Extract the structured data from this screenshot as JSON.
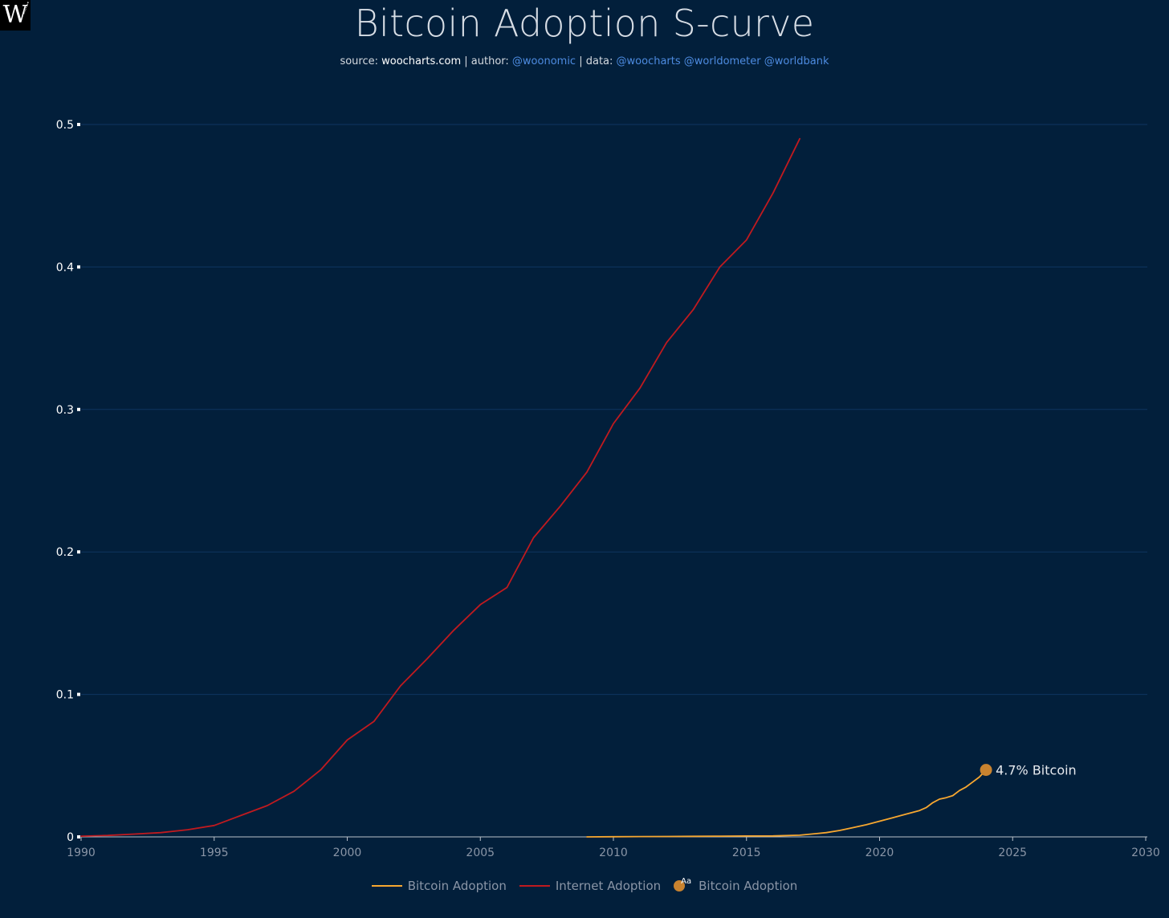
{
  "logo": {
    "letter": "W"
  },
  "header": {
    "title": "Bitcoin Adoption S-curve",
    "source_label": "source: ",
    "source_value": "woocharts.com",
    "sep1": " | author: ",
    "author": "@woonomic",
    "sep2": " | data: ",
    "data_sources": "@woocharts @worldometer @worldbank"
  },
  "colors": {
    "background": "#021f3b",
    "grid": "#0e3560",
    "bitcoin": "#f7a730",
    "internet": "#c01a1f",
    "marker": "#c9832f",
    "axis_text": "#ffffff",
    "xtick_text": "#8a95a6"
  },
  "chart_data": {
    "type": "line",
    "title": "Bitcoin Adoption S-curve",
    "xlim": [
      1990,
      2030
    ],
    "ylim": [
      0,
      0.5
    ],
    "x_ticks": [
      1990,
      1995,
      2000,
      2005,
      2010,
      2015,
      2020,
      2025,
      2030
    ],
    "y_ticks": [
      0,
      0.1,
      0.2,
      0.3,
      0.4,
      0.5
    ],
    "y_tick_labels": [
      "0",
      "0.1",
      "0.2",
      "0.3",
      "0.4",
      "0.5"
    ],
    "grid": true,
    "legend_position": "bottom-center",
    "series": [
      {
        "name": "Bitcoin Adoption",
        "color": "#f7a730",
        "x": [
          2009,
          2010,
          2011,
          2012,
          2013,
          2014,
          2015,
          2016,
          2017,
          2018,
          2018.5,
          2019,
          2019.5,
          2020,
          2020.5,
          2021,
          2021.5,
          2021.75,
          2022,
          2022.25,
          2022.5,
          2022.75,
          2023,
          2023.25,
          2023.5,
          2023.75,
          2024
        ],
        "y": [
          0,
          0.0001,
          0.0002,
          0.0003,
          0.0004,
          0.0005,
          0.0006,
          0.0007,
          0.0012,
          0.003,
          0.0045,
          0.0065,
          0.0085,
          0.011,
          0.0135,
          0.016,
          0.0185,
          0.0205,
          0.024,
          0.0265,
          0.0275,
          0.029,
          0.0325,
          0.035,
          0.0385,
          0.042,
          0.047
        ]
      },
      {
        "name": "Internet Adoption",
        "color": "#c01a1f",
        "x": [
          1990,
          1991,
          1992,
          1993,
          1994,
          1995,
          1996,
          1997,
          1998,
          1999,
          2000,
          2001,
          2002,
          2003,
          2004,
          2005,
          2006,
          2007,
          2008,
          2009,
          2010,
          2011,
          2012,
          2013,
          2014,
          2015,
          2016,
          2017
        ],
        "y": [
          0.0005,
          0.001,
          0.002,
          0.003,
          0.005,
          0.008,
          0.015,
          0.022,
          0.032,
          0.047,
          0.068,
          0.081,
          0.106,
          0.125,
          0.145,
          0.163,
          0.175,
          0.21,
          0.232,
          0.256,
          0.29,
          0.315,
          0.347,
          0.37,
          0.4,
          0.419,
          0.452,
          0.49
        ]
      }
    ],
    "annotation": {
      "name": "Bitcoin Adoption",
      "x": 2024,
      "y": 0.047,
      "label": "4.7% Bitcoin"
    }
  },
  "legend": {
    "items": [
      "Bitcoin Adoption",
      "Internet Adoption",
      "Bitcoin Adoption"
    ],
    "marker_text": "Aa"
  }
}
